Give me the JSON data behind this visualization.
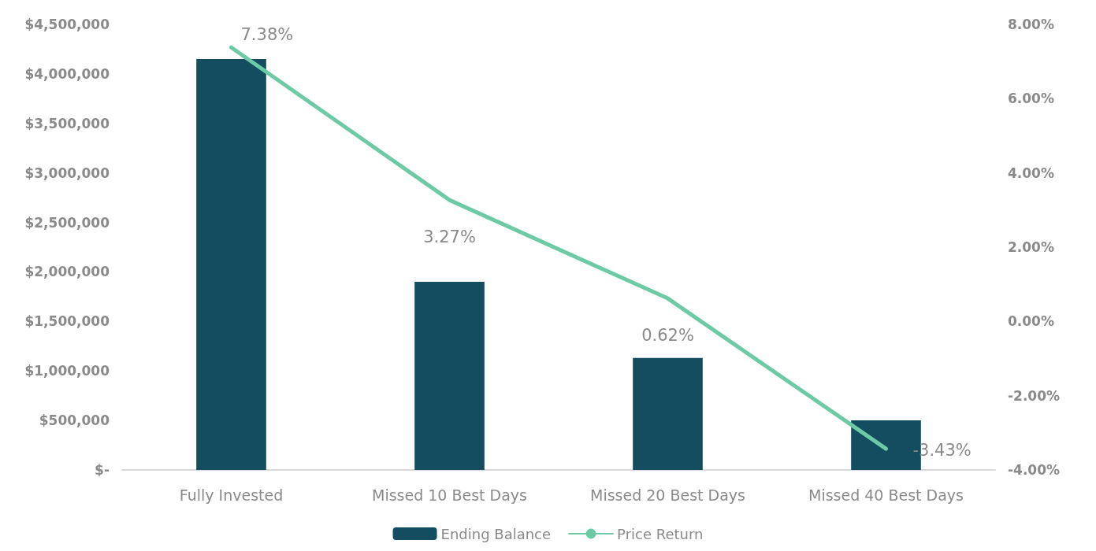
{
  "chart_data": {
    "type": "bar",
    "categories": [
      "Fully Invested",
      "Missed 10 Best Days",
      "Missed 20 Best Days",
      "Missed 40 Best Days"
    ],
    "series": [
      {
        "name": "Ending Balance",
        "color": "#134d5f",
        "values": [
          4150000,
          1900000,
          1130000,
          500000
        ]
      },
      {
        "name": "Price Return",
        "type": "line",
        "axis": "y2",
        "color": "#6ccba5",
        "values": [
          7.38,
          3.27,
          0.62,
          -3.43
        ],
        "value_labels": [
          "7.38%",
          "3.27%",
          "0.62%",
          "-3.43%"
        ]
      }
    ],
    "ylim": [
      0,
      4500000
    ],
    "yticks": [
      {
        "value": 0,
        "label": "$-"
      },
      {
        "value": 500000,
        "label": "$500,000"
      },
      {
        "value": 1000000,
        "label": "$1,000,000"
      },
      {
        "value": 1500000,
        "label": "$1,500,000"
      },
      {
        "value": 2000000,
        "label": "$2,000,000"
      },
      {
        "value": 2500000,
        "label": "$2,500,000"
      },
      {
        "value": 3000000,
        "label": "$3,000,000"
      },
      {
        "value": 3500000,
        "label": "$3,500,000"
      },
      {
        "value": 4000000,
        "label": "$4,000,000"
      },
      {
        "value": 4500000,
        "label": "$4,500,000"
      }
    ],
    "y2lim": [
      -4,
      8
    ],
    "y2ticks": [
      {
        "value": -4,
        "label": "-4.00%"
      },
      {
        "value": -2,
        "label": "-2.00%"
      },
      {
        "value": 0,
        "label": "0.00%"
      },
      {
        "value": 2,
        "label": "2.00%"
      },
      {
        "value": 4,
        "label": "4.00%"
      },
      {
        "value": 6,
        "label": "6.00%"
      },
      {
        "value": 8,
        "label": "8.00%"
      }
    ],
    "grid": false,
    "legend": "bottom",
    "marker": "none",
    "line_style": "solid"
  }
}
